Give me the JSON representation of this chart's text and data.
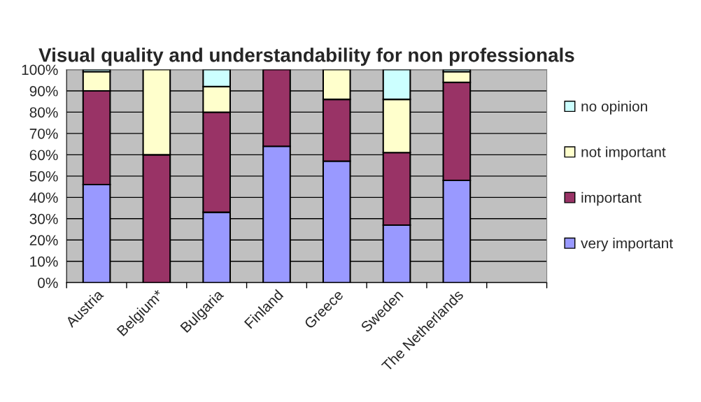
{
  "chart_data": {
    "type": "bar",
    "stacked": true,
    "title": "Visual quality and understandability for non professionals",
    "categories": [
      "Austria",
      "Belgium*",
      "Bulgaria",
      "Finland",
      "Greece",
      "Sweden",
      "The Netherlands",
      null
    ],
    "series": [
      {
        "name": "very important",
        "color": "#9999ff",
        "values": [
          46,
          0,
          33,
          64,
          57,
          27,
          48,
          null
        ]
      },
      {
        "name": "important",
        "color": "#993366",
        "values": [
          44,
          60,
          47,
          36,
          29,
          34,
          46,
          null
        ]
      },
      {
        "name": "not important",
        "color": "#ffffcc",
        "values": [
          9,
          40,
          12,
          0,
          14,
          25,
          5,
          null
        ]
      },
      {
        "name": "no opinion",
        "color": "#ccffff",
        "values": [
          1,
          0,
          8,
          0,
          0,
          14,
          1,
          null
        ]
      }
    ],
    "ylim": [
      0,
      100
    ],
    "yticks": [
      {
        "value": 0,
        "label": "0%"
      },
      {
        "value": 10,
        "label": "10%"
      },
      {
        "value": 20,
        "label": "20%"
      },
      {
        "value": 30,
        "label": "30%"
      },
      {
        "value": 40,
        "label": "40%"
      },
      {
        "value": 50,
        "label": "50%"
      },
      {
        "value": 60,
        "label": "60%"
      },
      {
        "value": 70,
        "label": "70%"
      },
      {
        "value": 80,
        "label": "80%"
      },
      {
        "value": 90,
        "label": "90%"
      },
      {
        "value": 100,
        "label": "100%"
      }
    ],
    "grid": "y",
    "legend": "right"
  }
}
